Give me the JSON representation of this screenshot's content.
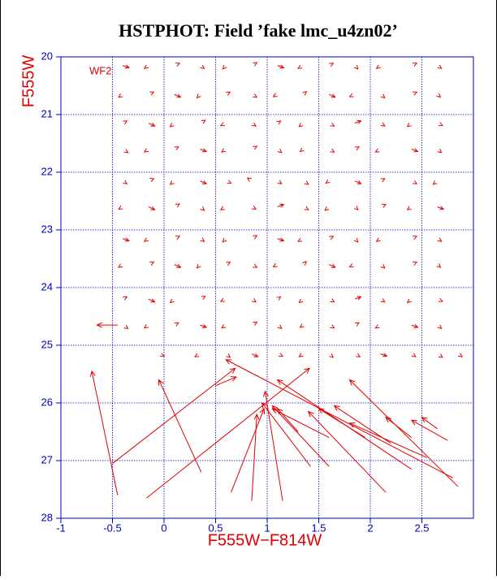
{
  "chart_data": {
    "type": "quiver",
    "title": "HSTPHOT: Field ’fake lmc_u4zn02’",
    "xlabel": "F555W−F814W",
    "ylabel": "F555W",
    "annotation": "WF2",
    "color": "#e00000",
    "axis_color": "#0000c0",
    "grid": true,
    "xlim": [
      -1,
      3
    ],
    "ylim": [
      28,
      20
    ],
    "xticks": [
      -1,
      -0.5,
      0,
      0.5,
      1,
      1.5,
      2,
      2.5
    ],
    "yticks": [
      20,
      21,
      22,
      23,
      24,
      25,
      26,
      27,
      28
    ],
    "x": [
      -0.4,
      -0.15,
      0.1,
      0.35,
      0.6,
      0.85,
      1.1,
      1.35,
      1.6,
      1.85,
      2.1,
      2.4,
      2.65,
      -0.4,
      -0.15,
      0.1,
      0.35,
      0.6,
      0.85,
      1.1,
      1.35,
      1.6,
      1.85,
      2.1,
      2.4,
      2.65,
      -0.4,
      -0.15,
      0.1,
      0.35,
      0.6,
      0.85,
      1.1,
      1.35,
      1.6,
      1.85,
      2.1,
      2.4,
      2.65,
      -0.4,
      -0.15,
      0.1,
      0.35,
      0.6,
      0.85,
      1.1,
      1.35,
      1.6,
      1.85,
      2.1,
      2.4,
      2.65,
      -0.4,
      -0.15,
      0.1,
      0.35,
      0.6,
      0.85,
      1.1,
      1.35,
      1.6,
      1.85,
      2.1,
      2.4,
      2.65,
      -0.4,
      -0.15,
      0.1,
      0.35,
      0.6,
      0.85,
      1.1,
      1.35,
      1.6,
      1.85,
      2.1,
      2.4,
      2.65,
      -0.4,
      -0.15,
      0.1,
      0.35,
      0.6,
      0.85,
      1.1,
      1.35,
      1.6,
      1.85,
      2.1,
      2.4,
      2.65,
      -0.4,
      -0.15,
      0.1,
      0.35,
      0.6,
      0.85,
      1.1,
      1.35,
      1.6,
      1.85,
      2.1,
      2.4,
      2.65,
      -0.4,
      -0.15,
      0.1,
      0.35,
      0.6,
      0.85,
      1.1,
      1.35,
      1.6,
      1.85,
      2.1,
      2.4,
      2.65,
      -0.4,
      -0.15,
      0.1,
      0.35,
      0.6,
      0.85,
      1.1,
      1.35,
      1.6,
      1.85,
      2.1,
      2.4,
      2.65,
      -0.05,
      0.35,
      0.6,
      0.85,
      1.1,
      1.35,
      1.6,
      1.85,
      2.1,
      2.4,
      2.65,
      2.85,
      -0.45,
      -0.5,
      -0.17,
      0.36,
      0.5,
      0.65,
      0.85,
      1.15,
      1.42,
      1.6,
      2.8,
      2.4,
      2.15,
      2.85,
      2.75,
      2.65,
      2.4,
      2.55,
      2.2,
      1.95,
      1.6,
      1.3,
      -0.45
    ],
    "y": [
      20.15,
      20.15,
      20.15,
      20.15,
      20.15,
      20.15,
      20.15,
      20.15,
      20.15,
      20.15,
      20.15,
      20.15,
      20.15,
      20.65,
      20.65,
      20.65,
      20.65,
      20.65,
      20.65,
      20.65,
      20.65,
      20.65,
      20.65,
      20.65,
      20.65,
      20.65,
      21.15,
      21.15,
      21.15,
      21.15,
      21.15,
      21.15,
      21.15,
      21.15,
      21.15,
      21.15,
      21.15,
      21.15,
      21.15,
      21.6,
      21.6,
      21.6,
      21.6,
      21.6,
      21.6,
      21.6,
      21.6,
      21.6,
      21.6,
      21.6,
      21.6,
      21.6,
      22.15,
      22.15,
      22.15,
      22.15,
      22.15,
      22.15,
      22.15,
      22.15,
      22.15,
      22.15,
      22.15,
      22.15,
      22.15,
      22.6,
      22.6,
      22.6,
      22.6,
      22.6,
      22.6,
      22.6,
      22.6,
      22.6,
      22.6,
      22.6,
      22.6,
      22.6,
      23.15,
      23.15,
      23.15,
      23.15,
      23.15,
      23.15,
      23.15,
      23.15,
      23.15,
      23.15,
      23.15,
      23.15,
      23.15,
      23.6,
      23.6,
      23.6,
      23.6,
      23.6,
      23.6,
      23.6,
      23.6,
      23.6,
      23.6,
      23.6,
      23.6,
      23.6,
      24.2,
      24.2,
      24.2,
      24.2,
      24.2,
      24.2,
      24.2,
      24.2,
      24.2,
      24.2,
      24.2,
      24.2,
      24.2,
      24.65,
      24.65,
      24.65,
      24.65,
      24.65,
      24.65,
      24.65,
      24.65,
      24.65,
      24.65,
      24.65,
      24.65,
      24.65,
      25.15,
      25.15,
      25.15,
      25.15,
      25.15,
      25.15,
      25.15,
      25.15,
      25.15,
      25.15,
      25.15,
      25.15,
      27.6,
      27.05,
      27.65,
      27.2,
      25.7,
      27.55,
      27.7,
      27.7,
      27.1,
      27.1,
      27.3,
      27.15,
      27.55,
      27.45,
      26.65,
      26.45,
      26.6,
      26.95,
      26.7,
      26.6,
      26.6,
      26.5,
      24.65
    ],
    "dx": [
      0.06,
      -0.04,
      0.05,
      0.04,
      -0.03,
      0.05,
      0.06,
      -0.05,
      0.04,
      0.03,
      -0.04,
      0.05,
      0.04,
      -0.04,
      0.05,
      0.06,
      -0.03,
      0.04,
      0.05,
      -0.04,
      0.03,
      0.06,
      -0.05,
      0.04,
      0.05,
      0.03,
      0.04,
      0.06,
      -0.04,
      0.05,
      -0.05,
      0.04,
      0.03,
      -0.04,
      0.05,
      0.06,
      0.04,
      -0.04,
      0.05,
      0.05,
      -0.04,
      0.04,
      0.06,
      -0.04,
      0.05,
      0.04,
      -0.03,
      0.05,
      0.04,
      -0.05,
      0.06,
      0.04,
      0.04,
      0.05,
      -0.04,
      0.06,
      0.05,
      -0.04,
      0.04,
      0.05,
      -0.03,
      0.06,
      0.04,
      0.05,
      -0.04,
      -0.04,
      0.06,
      0.05,
      0.04,
      -0.05,
      0.04,
      0.06,
      0.05,
      -0.04,
      0.03,
      0.05,
      -0.04,
      0.06,
      0.06,
      -0.04,
      0.05,
      0.04,
      -0.03,
      0.05,
      0.06,
      -0.05,
      0.04,
      0.03,
      -0.04,
      0.05,
      0.04,
      -0.04,
      0.05,
      0.06,
      -0.03,
      0.04,
      0.05,
      -0.04,
      0.03,
      0.06,
      -0.05,
      0.04,
      0.05,
      0.03,
      0.04,
      0.06,
      -0.04,
      0.05,
      -0.05,
      0.04,
      0.03,
      -0.04,
      0.05,
      0.06,
      0.04,
      -0.04,
      0.05,
      0.05,
      -0.04,
      0.04,
      0.06,
      -0.04,
      0.05,
      0.04,
      -0.03,
      0.05,
      0.04,
      -0.05,
      0.06,
      0.04,
      0.05,
      -0.05,
      0.04,
      0.06,
      0.05,
      -0.04,
      0.04,
      0.05,
      0.06,
      0.04,
      0.05,
      0.04,
      -0.25,
      1.19,
      1.58,
      -0.41,
      0.2,
      0.32,
      0.05,
      -0.17,
      -0.47,
      -0.55,
      -2.2,
      -1.3,
      -0.75,
      -1.05,
      -0.35,
      -0.15,
      -0.25,
      -0.75,
      -0.55,
      -0.45,
      -0.55,
      -0.2,
      -0.2
    ],
    "dy": [
      0.04,
      0.05,
      -0.04,
      0.05,
      0.06,
      -0.05,
      0.04,
      0.05,
      -0.04,
      0.06,
      0.05,
      -0.04,
      0.05,
      0.05,
      -0.04,
      0.05,
      0.06,
      -0.04,
      0.05,
      0.04,
      -0.05,
      0.05,
      0.04,
      0.06,
      -0.04,
      0.05,
      -0.04,
      0.05,
      0.06,
      -0.05,
      0.04,
      0.05,
      -0.04,
      0.06,
      0.05,
      -0.04,
      0.05,
      0.06,
      0.04,
      0.06,
      0.05,
      -0.04,
      0.04,
      0.05,
      -0.05,
      0.06,
      0.04,
      0.05,
      -0.04,
      0.05,
      0.04,
      0.06,
      0.05,
      -0.04,
      0.06,
      0.05,
      0.04,
      -0.05,
      0.05,
      0.06,
      0.04,
      0.05,
      -0.04,
      0.05,
      0.06,
      0.04,
      0.05,
      -0.05,
      0.06,
      0.05,
      0.04,
      -0.04,
      0.05,
      0.06,
      0.05,
      -0.04,
      0.05,
      0.04,
      0.04,
      0.05,
      -0.04,
      0.05,
      0.06,
      -0.05,
      0.04,
      0.05,
      -0.04,
      0.06,
      0.05,
      -0.04,
      0.05,
      0.05,
      -0.04,
      0.05,
      0.06,
      -0.04,
      0.05,
      0.04,
      -0.05,
      0.05,
      0.04,
      0.06,
      -0.04,
      0.05,
      -0.04,
      0.05,
      0.06,
      -0.05,
      0.04,
      0.05,
      -0.04,
      0.06,
      0.05,
      -0.04,
      0.05,
      0.06,
      0.04,
      0.06,
      0.05,
      -0.04,
      0.04,
      0.05,
      -0.05,
      0.06,
      0.04,
      0.05,
      -0.04,
      0.05,
      0.04,
      0.06,
      0.04,
      0.05,
      0.06,
      0.05,
      0.04,
      0.05,
      0.06,
      0.05,
      0.04,
      0.05,
      0.06,
      0.05,
      -2.15,
      -1.65,
      -2.25,
      -1.6,
      -0.15,
      -1.45,
      -1.5,
      -1.9,
      -1.1,
      -1.05,
      -2.05,
      -1.55,
      -1.4,
      -1.85,
      -0.35,
      -0.2,
      -0.35,
      -0.6,
      -0.65,
      -0.5,
      -0.5,
      -0.4,
      0
    ]
  }
}
